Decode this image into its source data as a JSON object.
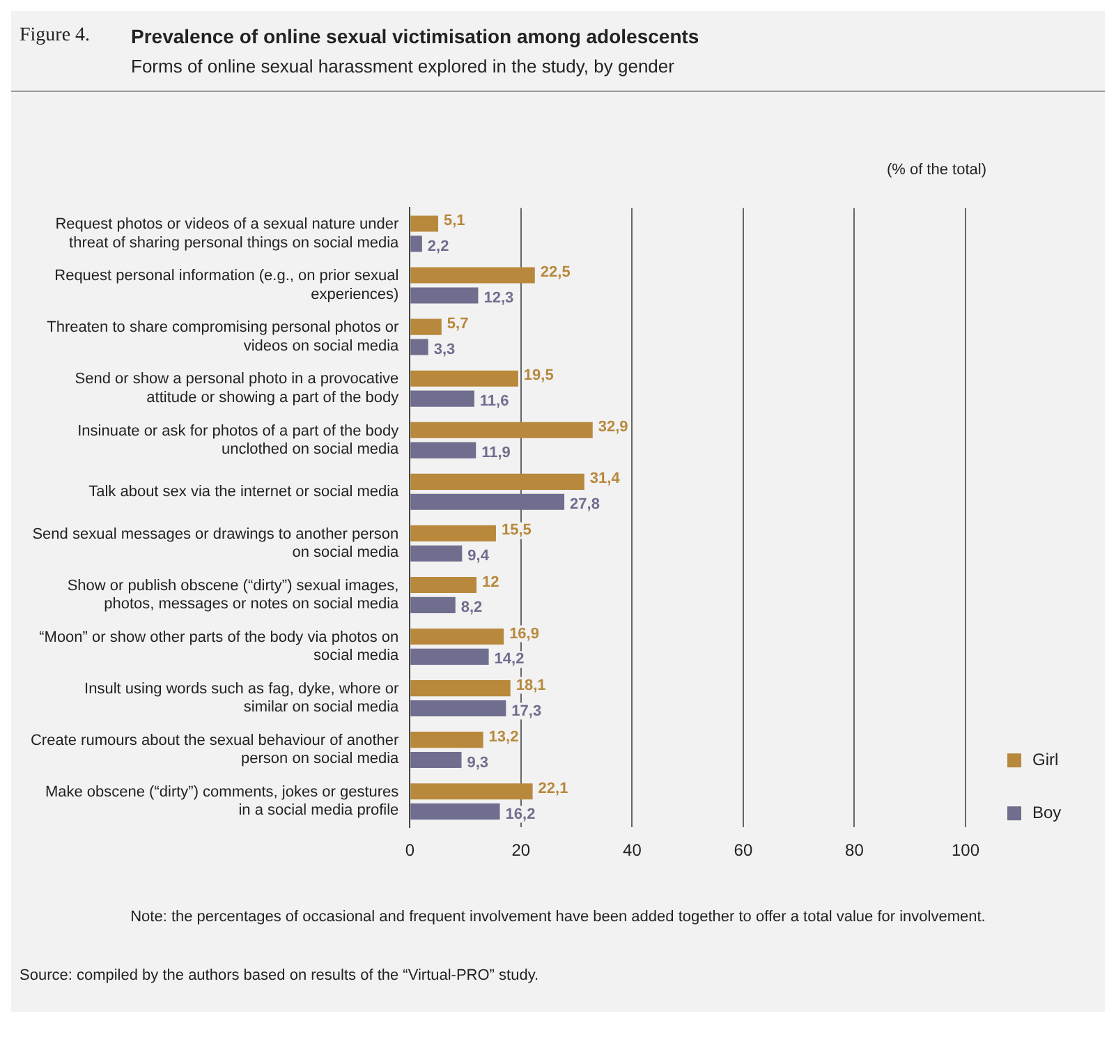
{
  "chart_data": {
    "type": "bar",
    "orientation": "horizontal",
    "title": "Prevalence of online sexual victimisation among adolescents",
    "subtitle": "Forms of online sexual harassment explored in the study, by gender",
    "annotations": [
      "Figure 4.",
      "(% of the total)",
      "Note: the percentages of occasional and frequent involvement have been added together to offer a total value for involvement.",
      "Source: compiled by the authors based on results of the “Virtual-PRO” study."
    ],
    "categories": [
      "Request photos or videos of a sexual nature under threat of sharing personal things on social media",
      "Request personal information (e.g., on prior sexual experiences)",
      "Threaten to share compromising personal photos or videos on social media",
      "Send or show a personal photo in a provocative attitude or showing a part of the body",
      "Insinuate or ask for photos of a part of the body unclothed on social media",
      "Talk about sex via the internet or social media",
      "Send sexual messages or drawings to another person on social media",
      "Show or publish obscene (“dirty”) sexual images, photos, messages or notes on social media",
      "“Moon” or show other parts of the body via photos on social media",
      "Insult using words such as fag, dyke, whore or similar on social media",
      "Create rumours about the sexual behaviour of another person on social media",
      "Make obscene (“dirty”) comments, jokes or gestures in a social media profile"
    ],
    "series": [
      {
        "name": "Girl",
        "color": "#b8893c",
        "values": [
          5.1,
          22.5,
          5.7,
          19.5,
          32.9,
          31.4,
          15.5,
          12,
          16.9,
          18.1,
          13.2,
          22.1
        ],
        "value_labels": [
          "5,1",
          "22,5",
          "5,7",
          "19,5",
          "32,9",
          "31,4",
          "15,5",
          "12",
          "16,9",
          "18,1",
          "13,2",
          "22,1"
        ]
      },
      {
        "name": "Boy",
        "color": "#706e8e",
        "values": [
          2.2,
          12.3,
          3.3,
          11.6,
          11.9,
          27.8,
          9.4,
          8.2,
          14.2,
          17.3,
          9.3,
          16.2
        ],
        "value_labels": [
          "2,2",
          "12,3",
          "3,3",
          "11,6",
          "11,9",
          "27,8",
          "9,4",
          "8,2",
          "14,2",
          "17,3",
          "9,3",
          "16,2"
        ]
      }
    ],
    "xlim": [
      0,
      100
    ],
    "xticks": [
      0,
      20,
      40,
      60,
      80,
      100
    ],
    "grid": "x",
    "legend": "bottom right"
  }
}
